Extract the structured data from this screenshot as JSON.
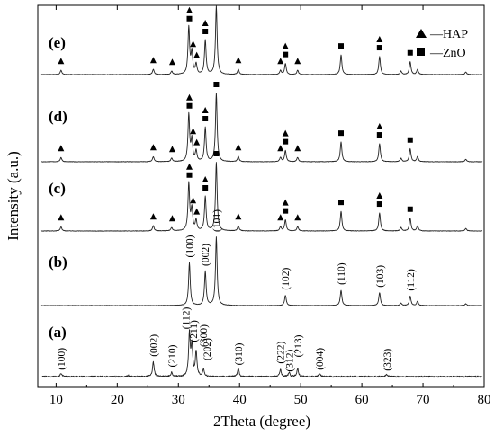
{
  "chart_data": {
    "type": "line",
    "xlabel": "2Theta (degree)",
    "ylabel": "Intensity (a.u.)",
    "xlim": [
      7,
      80
    ],
    "xticks": [
      10,
      20,
      30,
      40,
      50,
      60,
      70,
      80
    ],
    "yticks_shown": false,
    "legend": {
      "position": "top-right",
      "entries": [
        {
          "marker": "triangle",
          "label": "—HAP"
        },
        {
          "marker": "square",
          "label": "—ZnO"
        }
      ]
    },
    "series": [
      {
        "name": "(e)",
        "peaks": [
          {
            "x": 10.8,
            "h": 0.05
          },
          {
            "x": 25.9,
            "h": 0.06
          },
          {
            "x": 28.9,
            "h": 0.04
          },
          {
            "x": 31.7,
            "h": 0.55
          },
          {
            "x": 32.2,
            "h": 0.25
          },
          {
            "x": 32.9,
            "h": 0.12
          },
          {
            "x": 34.4,
            "h": 0.4
          },
          {
            "x": 36.2,
            "h": 0.8
          },
          {
            "x": 39.8,
            "h": 0.06
          },
          {
            "x": 46.7,
            "h": 0.05
          },
          {
            "x": 47.5,
            "h": 0.13
          },
          {
            "x": 49.5,
            "h": 0.05
          },
          {
            "x": 56.6,
            "h": 0.23
          },
          {
            "x": 62.9,
            "h": 0.21
          },
          {
            "x": 66.4,
            "h": 0.04
          },
          {
            "x": 67.9,
            "h": 0.15
          },
          {
            "x": 69.1,
            "h": 0.06
          },
          {
            "x": 77.0,
            "h": 0.03
          }
        ],
        "markers": [
          {
            "x": 10.8,
            "phase": "HAP"
          },
          {
            "x": 25.9,
            "phase": "HAP"
          },
          {
            "x": 29.0,
            "phase": "HAP"
          },
          {
            "x": 31.8,
            "phase": "HAP+ZnO"
          },
          {
            "x": 32.4,
            "phase": "HAP"
          },
          {
            "x": 33.0,
            "phase": "HAP"
          },
          {
            "x": 34.4,
            "phase": "HAP+ZnO"
          },
          {
            "x": 36.2,
            "phase": "ZnO"
          },
          {
            "x": 39.8,
            "phase": "HAP"
          },
          {
            "x": 46.7,
            "phase": "HAP"
          },
          {
            "x": 47.5,
            "phase": "HAP+ZnO"
          },
          {
            "x": 49.5,
            "phase": "HAP"
          },
          {
            "x": 56.6,
            "phase": "ZnO"
          },
          {
            "x": 62.9,
            "phase": "HAP+ZnO"
          },
          {
            "x": 67.9,
            "phase": "ZnO"
          }
        ]
      },
      {
        "name": "(d)",
        "peaks": [
          {
            "x": 10.8,
            "h": 0.05
          },
          {
            "x": 25.9,
            "h": 0.06
          },
          {
            "x": 28.9,
            "h": 0.04
          },
          {
            "x": 31.7,
            "h": 0.55
          },
          {
            "x": 32.2,
            "h": 0.25
          },
          {
            "x": 32.9,
            "h": 0.12
          },
          {
            "x": 34.4,
            "h": 0.4
          },
          {
            "x": 36.2,
            "h": 0.8
          },
          {
            "x": 39.8,
            "h": 0.06
          },
          {
            "x": 46.7,
            "h": 0.05
          },
          {
            "x": 47.5,
            "h": 0.13
          },
          {
            "x": 49.5,
            "h": 0.05
          },
          {
            "x": 56.6,
            "h": 0.23
          },
          {
            "x": 62.9,
            "h": 0.21
          },
          {
            "x": 66.4,
            "h": 0.04
          },
          {
            "x": 67.9,
            "h": 0.15
          },
          {
            "x": 69.1,
            "h": 0.06
          },
          {
            "x": 77.0,
            "h": 0.03
          }
        ],
        "markers": [
          {
            "x": 10.8,
            "phase": "HAP"
          },
          {
            "x": 25.9,
            "phase": "HAP"
          },
          {
            "x": 29.0,
            "phase": "HAP"
          },
          {
            "x": 31.8,
            "phase": "HAP+ZnO"
          },
          {
            "x": 32.4,
            "phase": "HAP"
          },
          {
            "x": 33.0,
            "phase": "HAP"
          },
          {
            "x": 34.4,
            "phase": "HAP+ZnO"
          },
          {
            "x": 36.2,
            "phase": "ZnO"
          },
          {
            "x": 39.8,
            "phase": "HAP"
          },
          {
            "x": 46.7,
            "phase": "HAP"
          },
          {
            "x": 47.5,
            "phase": "HAP+ZnO"
          },
          {
            "x": 49.5,
            "phase": "HAP"
          },
          {
            "x": 56.6,
            "phase": "ZnO"
          },
          {
            "x": 62.9,
            "phase": "HAP+ZnO"
          },
          {
            "x": 67.9,
            "phase": "ZnO"
          }
        ]
      },
      {
        "name": "(c)",
        "peaks": [
          {
            "x": 10.8,
            "h": 0.05
          },
          {
            "x": 25.9,
            "h": 0.06
          },
          {
            "x": 28.9,
            "h": 0.04
          },
          {
            "x": 31.7,
            "h": 0.55
          },
          {
            "x": 32.2,
            "h": 0.25
          },
          {
            "x": 32.9,
            "h": 0.12
          },
          {
            "x": 34.4,
            "h": 0.4
          },
          {
            "x": 36.2,
            "h": 0.8
          },
          {
            "x": 39.8,
            "h": 0.06
          },
          {
            "x": 46.7,
            "h": 0.05
          },
          {
            "x": 47.5,
            "h": 0.13
          },
          {
            "x": 49.5,
            "h": 0.05
          },
          {
            "x": 56.6,
            "h": 0.23
          },
          {
            "x": 62.9,
            "h": 0.21
          },
          {
            "x": 66.4,
            "h": 0.04
          },
          {
            "x": 67.9,
            "h": 0.15
          },
          {
            "x": 69.1,
            "h": 0.06
          },
          {
            "x": 77.0,
            "h": 0.03
          }
        ],
        "markers": [
          {
            "x": 10.8,
            "phase": "HAP"
          },
          {
            "x": 25.9,
            "phase": "HAP"
          },
          {
            "x": 29.0,
            "phase": "HAP"
          },
          {
            "x": 31.8,
            "phase": "HAP+ZnO"
          },
          {
            "x": 32.4,
            "phase": "HAP"
          },
          {
            "x": 33.0,
            "phase": "HAP"
          },
          {
            "x": 34.4,
            "phase": "HAP+ZnO"
          },
          {
            "x": 36.2,
            "phase": "ZnO"
          },
          {
            "x": 39.8,
            "phase": "HAP"
          },
          {
            "x": 46.7,
            "phase": "HAP"
          },
          {
            "x": 47.5,
            "phase": "HAP+ZnO"
          },
          {
            "x": 49.5,
            "phase": "HAP"
          },
          {
            "x": 56.6,
            "phase": "ZnO"
          },
          {
            "x": 62.9,
            "phase": "HAP+ZnO"
          },
          {
            "x": 67.9,
            "phase": "ZnO"
          }
        ]
      },
      {
        "name": "(b)",
        "peaks": [
          {
            "x": 31.8,
            "h": 0.5
          },
          {
            "x": 34.4,
            "h": 0.4
          },
          {
            "x": 36.2,
            "h": 0.8
          },
          {
            "x": 47.5,
            "h": 0.12
          },
          {
            "x": 56.6,
            "h": 0.18
          },
          {
            "x": 62.9,
            "h": 0.15
          },
          {
            "x": 66.4,
            "h": 0.03
          },
          {
            "x": 67.9,
            "h": 0.11
          },
          {
            "x": 69.1,
            "h": 0.05
          },
          {
            "x": 77.0,
            "h": 0.02
          }
        ],
        "peak_labels": [
          {
            "x": 31.8,
            "text": "(100)"
          },
          {
            "x": 34.4,
            "text": "(002)"
          },
          {
            "x": 36.2,
            "text": "(101)"
          },
          {
            "x": 47.5,
            "text": "(102)"
          },
          {
            "x": 56.6,
            "text": "(110)"
          },
          {
            "x": 62.9,
            "text": "(103)"
          },
          {
            "x": 67.9,
            "text": "(112)"
          }
        ]
      },
      {
        "name": "(a)",
        "peaks": [
          {
            "x": 10.8,
            "h": 0.04
          },
          {
            "x": 21.8,
            "h": 0.015
          },
          {
            "x": 25.9,
            "h": 0.18
          },
          {
            "x": 28.9,
            "h": 0.05
          },
          {
            "x": 31.8,
            "h": 0.52
          },
          {
            "x": 32.2,
            "h": 0.36
          },
          {
            "x": 32.9,
            "h": 0.3
          },
          {
            "x": 34.1,
            "h": 0.09
          },
          {
            "x": 39.8,
            "h": 0.1
          },
          {
            "x": 46.7,
            "h": 0.09
          },
          {
            "x": 48.1,
            "h": 0.05
          },
          {
            "x": 49.5,
            "h": 0.1
          },
          {
            "x": 53.1,
            "h": 0.04
          },
          {
            "x": 64.1,
            "h": 0.03
          }
        ],
        "peak_labels": [
          {
            "x": 10.8,
            "text": "(100)"
          },
          {
            "x": 25.9,
            "text": "(002)"
          },
          {
            "x": 28.9,
            "text": "(210)"
          },
          {
            "x": 31.8,
            "text": "(112)"
          },
          {
            "x": 32.2,
            "text": "(211)"
          },
          {
            "x": 32.9,
            "text": "(300)"
          },
          {
            "x": 34.1,
            "text": "(202)"
          },
          {
            "x": 39.8,
            "text": "(310)"
          },
          {
            "x": 46.7,
            "text": "(222)"
          },
          {
            "x": 48.1,
            "text": "(312)"
          },
          {
            "x": 49.5,
            "text": "(213)"
          },
          {
            "x": 53.1,
            "text": "(004)"
          },
          {
            "x": 64.1,
            "text": "(323)"
          }
        ]
      }
    ]
  }
}
